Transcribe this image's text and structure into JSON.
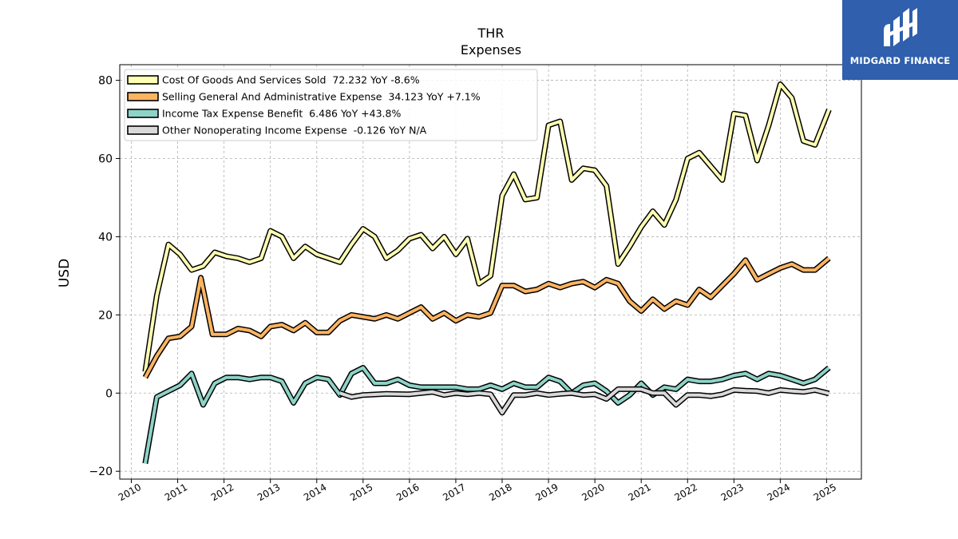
{
  "brand": {
    "name": "MIDGARD FINANCE",
    "background": "#2f5fad"
  },
  "chart_data": {
    "type": "line",
    "title": "THR",
    "subtitle": "Expenses",
    "ylabel": "USD",
    "xlabel": "",
    "xlim": [
      2009.75,
      2025.75
    ],
    "ylim": [
      -22,
      84
    ],
    "x_ticks": [
      2010,
      2011,
      2012,
      2013,
      2014,
      2015,
      2016,
      2017,
      2018,
      2019,
      2020,
      2021,
      2022,
      2023,
      2024,
      2025
    ],
    "y_ticks": [
      -20,
      0,
      20,
      40,
      60,
      80
    ],
    "y_tick_labels": [
      "−20",
      "0",
      "20",
      "40",
      "60",
      "80"
    ],
    "grid": true,
    "legend_position": "top-left",
    "series": [
      {
        "name": "Cost Of Goods And Services Sold  72.232 YoY -8.6%",
        "color": "#ffffb3",
        "x": [
          2010.3,
          2010.55,
          2010.8,
          2011.05,
          2011.3,
          2011.55,
          2011.8,
          2012.05,
          2012.3,
          2012.55,
          2012.8,
          2013.0,
          2013.25,
          2013.5,
          2013.75,
          2014.0,
          2014.25,
          2014.5,
          2014.75,
          2015.0,
          2015.25,
          2015.5,
          2015.75,
          2016.0,
          2016.25,
          2016.5,
          2016.75,
          2017.0,
          2017.25,
          2017.5,
          2017.75,
          2018.0,
          2018.25,
          2018.5,
          2018.75,
          2019.0,
          2019.25,
          2019.5,
          2019.75,
          2020.0,
          2020.25,
          2020.5,
          2020.75,
          2021.0,
          2021.25,
          2021.5,
          2021.75,
          2022.0,
          2022.25,
          2022.5,
          2022.75,
          2023.0,
          2023.25,
          2023.5,
          2023.75,
          2024.0,
          2024.25,
          2024.5,
          2024.75,
          2025.05
        ],
        "values": [
          5.5,
          25.0,
          38.0,
          35.5,
          31.5,
          32.5,
          36.0,
          35.0,
          34.5,
          33.5,
          34.5,
          41.5,
          40.0,
          34.5,
          37.5,
          35.5,
          34.5,
          33.5,
          38.0,
          42.0,
          40.0,
          34.5,
          36.5,
          39.5,
          40.5,
          37.0,
          40.0,
          35.5,
          39.5,
          28.0,
          30.0,
          50.5,
          56.0,
          49.5,
          50.0,
          68.5,
          69.5,
          54.5,
          57.5,
          57.0,
          53.0,
          33.0,
          37.5,
          42.5,
          46.5,
          43.0,
          49.5,
          60.0,
          61.5,
          58.0,
          54.5,
          71.5,
          71.0,
          59.5,
          68.5,
          79.0,
          75.5,
          64.5,
          63.5,
          72.5
        ]
      },
      {
        "name": "Selling General And Administrative Expense  34.123 YoY +7.1%",
        "color": "#fdb462",
        "x": [
          2010.3,
          2010.55,
          2010.8,
          2011.05,
          2011.3,
          2011.5,
          2011.75,
          2012.05,
          2012.3,
          2012.55,
          2012.8,
          2013.0,
          2013.25,
          2013.5,
          2013.75,
          2014.0,
          2014.25,
          2014.5,
          2014.75,
          2015.0,
          2015.25,
          2015.5,
          2015.75,
          2016.0,
          2016.25,
          2016.5,
          2016.75,
          2017.0,
          2017.25,
          2017.5,
          2017.75,
          2018.0,
          2018.25,
          2018.5,
          2018.75,
          2019.0,
          2019.25,
          2019.5,
          2019.75,
          2020.0,
          2020.25,
          2020.5,
          2020.75,
          2021.0,
          2021.25,
          2021.5,
          2021.75,
          2022.0,
          2022.25,
          2022.5,
          2022.75,
          2023.0,
          2023.25,
          2023.5,
          2023.75,
          2024.0,
          2024.25,
          2024.5,
          2024.75,
          2025.05
        ],
        "values": [
          4.0,
          9.5,
          14.0,
          14.5,
          17.0,
          29.5,
          15.0,
          15.0,
          16.5,
          16.0,
          14.5,
          17.0,
          17.5,
          16.0,
          18.0,
          15.5,
          15.5,
          18.5,
          20.0,
          19.5,
          19.0,
          20.0,
          19.0,
          20.5,
          22.0,
          19.0,
          20.5,
          18.5,
          20.0,
          19.5,
          20.5,
          27.5,
          27.5,
          26.0,
          26.5,
          28.0,
          27.0,
          28.0,
          28.5,
          27.0,
          29.0,
          28.0,
          23.5,
          21.0,
          24.0,
          21.5,
          23.5,
          22.5,
          26.5,
          24.5,
          27.5,
          30.5,
          34.0,
          29.0,
          30.5,
          32.0,
          33.0,
          31.5,
          31.5,
          34.5
        ]
      },
      {
        "name": "Income Tax Expense Benefit  6.486 YoY +43.8%",
        "color": "#8dd3c7",
        "x": [
          2010.3,
          2010.55,
          2010.8,
          2011.05,
          2011.3,
          2011.55,
          2011.8,
          2012.05,
          2012.3,
          2012.55,
          2012.8,
          2013.0,
          2013.25,
          2013.5,
          2013.75,
          2014.0,
          2014.25,
          2014.5,
          2014.75,
          2015.0,
          2015.25,
          2015.5,
          2015.75,
          2016.0,
          2016.25,
          2016.5,
          2016.75,
          2017.0,
          2017.25,
          2017.5,
          2017.75,
          2018.0,
          2018.25,
          2018.5,
          2018.75,
          2019.0,
          2019.25,
          2019.5,
          2019.75,
          2020.0,
          2020.25,
          2020.5,
          2020.75,
          2021.0,
          2021.25,
          2021.5,
          2021.75,
          2022.0,
          2022.25,
          2022.5,
          2022.75,
          2023.0,
          2023.25,
          2023.5,
          2023.75,
          2024.0,
          2024.25,
          2024.5,
          2024.75,
          2025.05
        ],
        "values": [
          -18.0,
          -1.0,
          0.5,
          2.0,
          5.0,
          -3.0,
          2.5,
          4.0,
          4.0,
          3.5,
          4.0,
          4.0,
          3.0,
          -2.5,
          2.5,
          4.0,
          3.5,
          -0.5,
          5.0,
          6.5,
          2.5,
          2.5,
          3.5,
          2.0,
          1.5,
          1.5,
          1.5,
          1.5,
          1.0,
          1.0,
          2.0,
          1.0,
          2.5,
          1.5,
          1.5,
          4.0,
          3.0,
          0.0,
          2.0,
          2.5,
          0.5,
          -2.5,
          -0.5,
          2.5,
          -0.5,
          1.5,
          1.0,
          3.5,
          3.0,
          3.0,
          3.5,
          4.5,
          5.0,
          3.5,
          5.0,
          4.5,
          3.5,
          2.5,
          3.5,
          6.5
        ]
      },
      {
        "name": "Other Nonoperating Income Expense  -0.126 YoY N/A",
        "color": "#d9d9d9",
        "x": [
          2014.5,
          2014.75,
          2015.0,
          2015.5,
          2016.0,
          2016.5,
          2016.75,
          2017.0,
          2017.25,
          2017.5,
          2017.75,
          2018.0,
          2018.25,
          2018.5,
          2018.75,
          2019.0,
          2019.25,
          2019.5,
          2019.75,
          2020.0,
          2020.25,
          2020.5,
          2020.75,
          2021.0,
          2021.25,
          2021.5,
          2021.75,
          2022.0,
          2022.25,
          2022.5,
          2022.75,
          2023.0,
          2023.25,
          2023.5,
          2023.75,
          2024.0,
          2024.25,
          2024.5,
          2024.75,
          2025.05
        ],
        "values": [
          0.0,
          -1.0,
          -0.5,
          -0.2,
          -0.3,
          0.3,
          -0.5,
          0.0,
          -0.3,
          0.0,
          -0.3,
          -5.0,
          -0.5,
          -0.5,
          0.0,
          -0.5,
          -0.2,
          0.0,
          -0.5,
          -0.3,
          -1.5,
          1.0,
          1.0,
          1.0,
          0.0,
          0.0,
          -3.0,
          -0.5,
          -0.5,
          -0.8,
          -0.3,
          0.8,
          0.6,
          0.5,
          0.0,
          0.8,
          0.5,
          0.3,
          0.8,
          -0.1
        ]
      }
    ]
  }
}
